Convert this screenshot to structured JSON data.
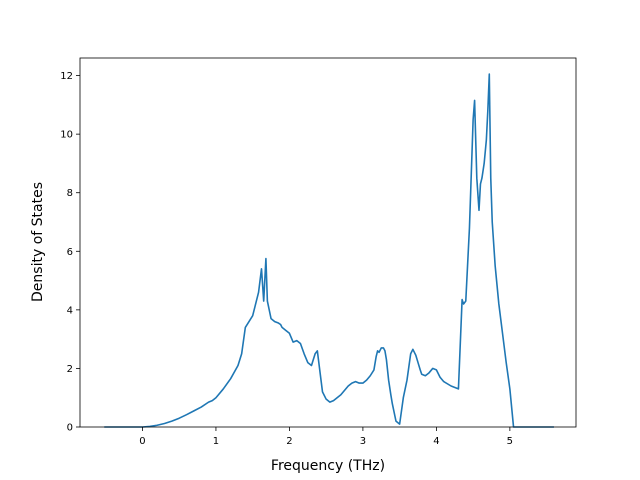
{
  "chart_data": {
    "type": "line",
    "title": "",
    "xlabel": "Frequency (THz)",
    "ylabel": "Density of States",
    "xlim": [
      -0.85,
      5.9
    ],
    "ylim": [
      0,
      12.6
    ],
    "grid": false,
    "legend": "none",
    "color": "#1f77b4",
    "xticks": [
      0,
      1,
      2,
      3,
      4,
      5
    ],
    "yticks": [
      0,
      2,
      4,
      6,
      8,
      10,
      12
    ],
    "series": [
      {
        "x": [
          -0.52,
          0.0,
          0.1,
          0.2,
          0.3,
          0.4,
          0.5,
          0.6,
          0.7,
          0.8,
          0.9,
          0.95,
          1.0,
          1.1,
          1.2,
          1.3,
          1.35,
          1.4,
          1.45,
          1.5,
          1.55,
          1.58,
          1.6,
          1.62,
          1.65,
          1.68,
          1.7,
          1.75,
          1.8,
          1.85,
          1.88,
          1.9,
          1.95,
          2.0,
          2.05,
          2.1,
          2.15,
          2.2,
          2.25,
          2.3,
          2.35,
          2.38,
          2.4,
          2.45,
          2.5,
          2.55,
          2.6,
          2.7,
          2.8,
          2.85,
          2.9,
          2.95,
          3.0,
          3.05,
          3.1,
          3.15,
          3.18,
          3.2,
          3.22,
          3.25,
          3.28,
          3.3,
          3.32,
          3.35,
          3.38,
          3.4,
          3.45,
          3.5,
          3.55,
          3.6,
          3.65,
          3.68,
          3.7,
          3.72,
          3.75,
          3.78,
          3.8,
          3.85,
          3.9,
          3.95,
          4.0,
          4.05,
          4.1,
          4.2,
          4.3,
          4.35,
          4.37,
          4.4,
          4.45,
          4.5,
          4.52,
          4.55,
          4.58,
          4.6,
          4.62,
          4.65,
          4.68,
          4.7,
          4.72,
          4.74,
          4.76,
          4.8,
          4.85,
          4.9,
          4.95,
          5.0,
          5.05,
          5.1,
          5.15,
          5.2,
          5.3,
          5.5,
          5.6
        ],
        "y": [
          0,
          0.0,
          0.02,
          0.06,
          0.12,
          0.2,
          0.3,
          0.42,
          0.55,
          0.68,
          0.85,
          0.9,
          1.0,
          1.3,
          1.65,
          2.1,
          2.5,
          3.4,
          3.6,
          3.8,
          4.3,
          4.6,
          5.0,
          5.4,
          4.3,
          5.75,
          4.3,
          3.7,
          3.6,
          3.55,
          3.5,
          3.4,
          3.3,
          3.2,
          2.9,
          2.95,
          2.85,
          2.5,
          2.2,
          2.1,
          2.5,
          2.6,
          2.2,
          1.2,
          0.95,
          0.85,
          0.9,
          1.1,
          1.4,
          1.5,
          1.55,
          1.5,
          1.5,
          1.6,
          1.75,
          1.95,
          2.4,
          2.6,
          2.55,
          2.7,
          2.7,
          2.6,
          2.3,
          1.6,
          1.1,
          0.8,
          0.2,
          0.1,
          1.0,
          1.6,
          2.5,
          2.65,
          2.55,
          2.45,
          2.2,
          1.95,
          1.8,
          1.75,
          1.85,
          2.0,
          1.95,
          1.7,
          1.55,
          1.4,
          1.3,
          4.35,
          4.2,
          4.3,
          6.8,
          10.5,
          11.15,
          8.5,
          7.4,
          8.3,
          8.5,
          9.0,
          9.8,
          10.8,
          12.05,
          8.5,
          7.0,
          5.5,
          4.2,
          3.2,
          2.2,
          1.3,
          0.0,
          0.0,
          0.0,
          0.0,
          0.0,
          0.0,
          0.0
        ]
      }
    ]
  }
}
